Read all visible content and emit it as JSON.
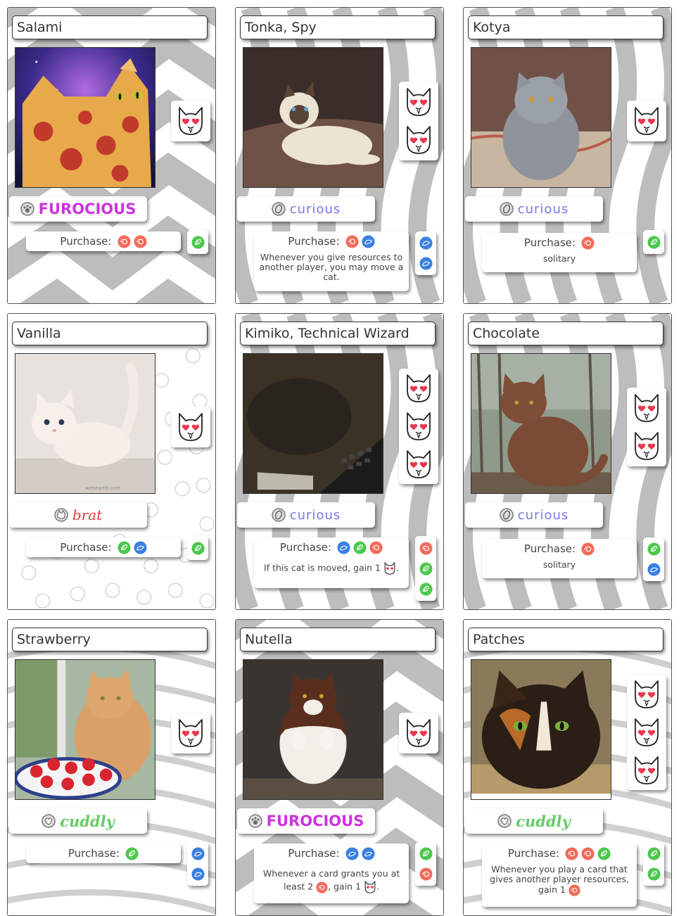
{
  "purchase_label": "Purchase:",
  "colors": {
    "red": "#f26b5b",
    "green": "#4cc84c",
    "blue": "#3b7fe3",
    "trait_furocious": "#cc33dd",
    "trait_curious": "#7777ee",
    "trait_brat": "#e23a3a",
    "trait_cuddly": "#66cc66"
  },
  "cards": [
    {
      "name": "Salami",
      "bg": "chevron",
      "hearts": 1,
      "trait": "FUROCIOUS",
      "trait_style": "furocious",
      "cost": [
        "red",
        "red"
      ],
      "desc": [],
      "resources": [
        "green"
      ]
    },
    {
      "name": "Tonka, Spy",
      "bg": "wave",
      "hearts": 2,
      "trait": "curious",
      "trait_style": "curious",
      "cost": [
        "red",
        "blue"
      ],
      "desc": [
        {
          "t": "text",
          "v": "Whenever you give resources to another player, you may move a cat."
        }
      ],
      "resources": [
        "blue",
        "blue"
      ]
    },
    {
      "name": "Kotya",
      "bg": "wave",
      "hearts": 1,
      "trait": "curious",
      "trait_style": "curious",
      "cost": [
        "red"
      ],
      "desc": [
        {
          "t": "text",
          "v": "solitary"
        }
      ],
      "resources": [
        "green"
      ]
    },
    {
      "name": "Vanilla",
      "bg": "yarn",
      "hearts": 1,
      "trait": "brat",
      "trait_style": "brat",
      "cost": [
        "green",
        "blue"
      ],
      "desc": [],
      "resources": [
        "green"
      ]
    },
    {
      "name": "Kimiko, Technical Wizard",
      "bg": "wave",
      "hearts": 3,
      "trait": "curious",
      "trait_style": "curious",
      "cost": [
        "blue",
        "green",
        "red"
      ],
      "desc": [
        {
          "t": "text",
          "v": "If this cat is moved, gain 1 "
        },
        {
          "t": "heart"
        },
        {
          "t": "text",
          "v": "."
        }
      ],
      "resources": [
        "red",
        "green",
        "green"
      ]
    },
    {
      "name": "Chocolate",
      "bg": "wave",
      "hearts": 2,
      "trait": "curious",
      "trait_style": "curious",
      "cost": [
        "red"
      ],
      "desc": [
        {
          "t": "text",
          "v": "solitary"
        }
      ],
      "resources": [
        "green",
        "blue"
      ]
    },
    {
      "name": "Strawberry",
      "bg": "swirl",
      "hearts": 1,
      "trait": "cuddly",
      "trait_style": "cuddly",
      "cost": [
        "green"
      ],
      "desc": [],
      "resources": [
        "blue",
        "blue"
      ]
    },
    {
      "name": "Nutella",
      "bg": "chevron",
      "hearts": 1,
      "trait": "FUROCIOUS",
      "trait_style": "furocious",
      "cost": [
        "blue",
        "blue"
      ],
      "desc": [
        {
          "t": "text",
          "v": "Whenever a card grants you at least 2 "
        },
        {
          "t": "token",
          "c": "red"
        },
        {
          "t": "text",
          "v": ", gain 1 "
        },
        {
          "t": "heart"
        },
        {
          "t": "text",
          "v": "."
        }
      ],
      "resources": [
        "green",
        "red"
      ]
    },
    {
      "name": "Patches",
      "bg": "swirl",
      "hearts": 3,
      "trait": "cuddly",
      "trait_style": "cuddly",
      "cost": [
        "red",
        "red",
        "green"
      ],
      "desc": [
        {
          "t": "text",
          "v": "Whenever you play a card that gives another player resources, gain 1 "
        },
        {
          "t": "token",
          "c": "red"
        }
      ],
      "resources": [
        "green",
        "green"
      ]
    }
  ]
}
